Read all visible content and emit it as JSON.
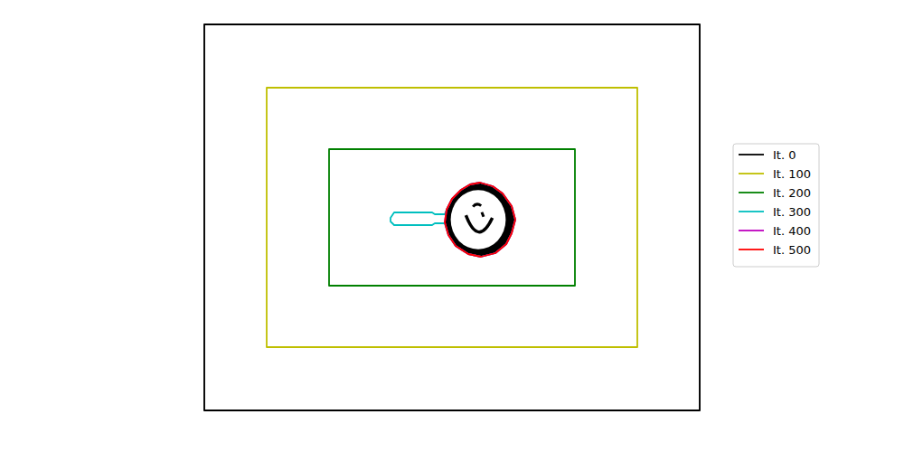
{
  "chart_data": {
    "type": "line",
    "xlim": [
      0,
      548
    ],
    "ylim": [
      427,
      0
    ],
    "tick_labels": false,
    "grid": false,
    "legend": "right",
    "series": [
      {
        "name": "It. 0",
        "color": "#000000",
        "x": [
          0,
          548,
          548,
          0,
          0
        ],
        "values": [
          0,
          0,
          427,
          427,
          0
        ]
      },
      {
        "name": "It. 100",
        "color": "#bfbf00",
        "x": [
          69,
          479,
          479,
          69,
          69
        ],
        "values": [
          70,
          70,
          357,
          357,
          70
        ]
      },
      {
        "name": "It. 200",
        "color": "#008000",
        "x": [
          138,
          410,
          410,
          138,
          138
        ],
        "values": [
          138,
          138,
          289,
          289,
          138
        ]
      },
      {
        "name": "It. 300",
        "color": "#00bfbf",
        "x": [
          268,
          274,
          284,
          294,
          305,
          319,
          330,
          340,
          344,
          340,
          334,
          322,
          306,
          292,
          278,
          270,
          266,
          255,
          252,
          210,
          206,
          206,
          210,
          252,
          255,
          266,
          268
        ],
        "values": [
          205,
          193,
          183,
          177,
          175,
          179,
          187,
          201,
          216,
          231,
          243,
          253,
          257,
          254,
          245,
          233,
          220,
          220,
          222,
          222,
          218,
          214,
          208,
          208,
          210,
          210,
          205
        ]
      },
      {
        "name": "It. 400",
        "color": "#bf00bf",
        "x": [
          305,
          319,
          330,
          340,
          344,
          340,
          334,
          322,
          306,
          292,
          278,
          270,
          266,
          268,
          274,
          284,
          294,
          305
        ],
        "values": [
          175,
          179,
          187,
          201,
          216,
          231,
          243,
          253,
          257,
          254,
          245,
          233,
          219,
          205,
          193,
          183,
          177,
          175
        ]
      },
      {
        "name": "It. 500",
        "color": "#ff0000",
        "x": [
          305,
          319,
          330,
          340,
          344,
          340,
          334,
          322,
          306,
          292,
          278,
          270,
          266,
          268,
          274,
          284,
          294,
          305
        ],
        "values": [
          175,
          179,
          187,
          201,
          216,
          231,
          243,
          253,
          257,
          254,
          245,
          233,
          219,
          205,
          193,
          183,
          177,
          175
        ]
      }
    ]
  }
}
